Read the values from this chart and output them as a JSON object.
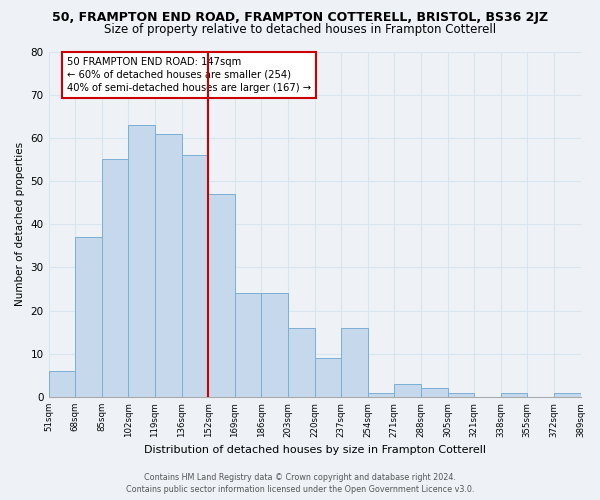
{
  "title": "50, FRAMPTON END ROAD, FRAMPTON COTTERELL, BRISTOL, BS36 2JZ",
  "subtitle": "Size of property relative to detached houses in Frampton Cotterell",
  "xlabel": "Distribution of detached houses by size in Frampton Cotterell",
  "ylabel": "Number of detached properties",
  "bin_labels": [
    "51sqm",
    "68sqm",
    "85sqm",
    "102sqm",
    "119sqm",
    "136sqm",
    "152sqm",
    "169sqm",
    "186sqm",
    "203sqm",
    "220sqm",
    "237sqm",
    "254sqm",
    "271sqm",
    "288sqm",
    "305sqm",
    "321sqm",
    "338sqm",
    "355sqm",
    "372sqm",
    "389sqm"
  ],
  "bar_heights": [
    6,
    37,
    55,
    63,
    61,
    56,
    47,
    24,
    24,
    16,
    9,
    16,
    1,
    3,
    2,
    1,
    0,
    1,
    0,
    1
  ],
  "bar_color": "#c6d9ec",
  "bar_edge_color": "#7bafd4",
  "vline_x_index": 6,
  "vline_color": "#cc0000",
  "annotation_text": "50 FRAMPTON END ROAD: 147sqm\n← 60% of detached houses are smaller (254)\n40% of semi-detached houses are larger (167) →",
  "annotation_box_color": "#ffffff",
  "annotation_box_edge": "#cc0000",
  "ylim": [
    0,
    80
  ],
  "yticks": [
    0,
    10,
    20,
    30,
    40,
    50,
    60,
    70,
    80
  ],
  "footer_line1": "Contains HM Land Registry data © Crown copyright and database right 2024.",
  "footer_line2": "Contains public sector information licensed under the Open Government Licence v3.0.",
  "bg_color": "#eef2f7",
  "grid_color": "#d8e4f0",
  "title_fontsize": 9,
  "subtitle_fontsize": 8.5
}
